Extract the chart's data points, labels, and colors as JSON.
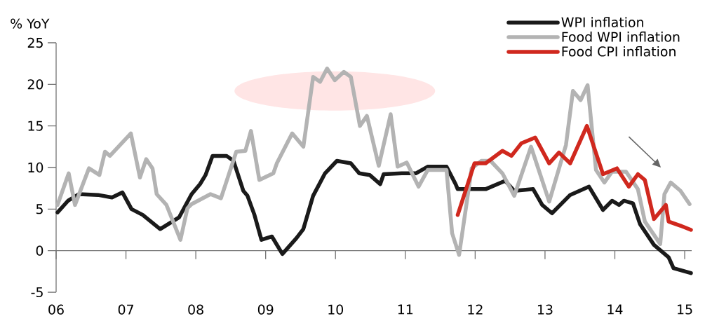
{
  "chart_data": {
    "type": "line",
    "ylabel": "% YoY",
    "xlim": [
      2006,
      2015.1
    ],
    "xticks": [
      {
        "value": 2006,
        "label": "06"
      },
      {
        "value": 2007,
        "label": "07"
      },
      {
        "value": 2008,
        "label": "08"
      },
      {
        "value": 2009,
        "label": "09"
      },
      {
        "value": 2010,
        "label": "10"
      },
      {
        "value": 2011,
        "label": "11"
      },
      {
        "value": 2012,
        "label": "12"
      },
      {
        "value": 2013,
        "label": "13"
      },
      {
        "value": 2014,
        "label": "14"
      },
      {
        "value": 2015,
        "label": "15"
      }
    ],
    "ylim": [
      -5,
      25
    ],
    "yticks": [
      -5,
      0,
      5,
      10,
      15,
      20,
      25
    ],
    "legend": "top right",
    "ref_lines": [
      {
        "axis": "y",
        "value": 0
      }
    ],
    "marker": "none",
    "line_style": "solid",
    "series": [
      {
        "name": "WPI inflation",
        "color": "#1a1a1a",
        "x": [
          2006.02,
          2006.17,
          2006.33,
          2006.6,
          2006.8,
          2006.95,
          2007.08,
          2007.24,
          2007.49,
          2007.76,
          2007.94,
          2008.06,
          2008.14,
          2008.24,
          2008.44,
          2008.54,
          2008.68,
          2008.74,
          2008.84,
          2008.94,
          2009.09,
          2009.24,
          2009.44,
          2009.54,
          2009.68,
          2009.85,
          2010.02,
          2010.22,
          2010.34,
          2010.49,
          2010.64,
          2010.69,
          2010.95,
          2011.15,
          2011.32,
          2011.59,
          2011.72,
          2011.75,
          2012.15,
          2012.43,
          2012.56,
          2012.83,
          2012.96,
          2013.1,
          2013.36,
          2013.63,
          2013.73,
          2013.83,
          2013.96,
          2014.06,
          2014.13,
          2014.26,
          2014.36,
          2014.56,
          2014.77,
          2014.84,
          2015.09
        ],
        "values": [
          4.6,
          6.0,
          6.8,
          6.7,
          6.4,
          7.0,
          5.0,
          4.3,
          2.6,
          4.0,
          6.8,
          8.0,
          9.1,
          11.4,
          11.4,
          10.8,
          7.2,
          6.6,
          4.3,
          1.3,
          1.7,
          -0.4,
          1.5,
          2.6,
          6.6,
          9.3,
          10.8,
          10.5,
          9.3,
          9.1,
          8.0,
          9.2,
          9.3,
          9.3,
          10.1,
          10.1,
          8.0,
          7.4,
          7.4,
          8.4,
          7.2,
          7.4,
          5.5,
          4.5,
          6.7,
          7.7,
          6.3,
          4.9,
          6.0,
          5.5,
          6.0,
          5.7,
          3.2,
          0.7,
          -0.8,
          -2.1,
          -2.7
        ]
      },
      {
        "name": "Food WPI inflation",
        "color": "#b3b3b3",
        "x": [
          2006.02,
          2006.18,
          2006.27,
          2006.47,
          2006.62,
          2006.7,
          2006.77,
          2007.07,
          2007.2,
          2007.29,
          2007.38,
          2007.44,
          2007.58,
          2007.78,
          2007.88,
          2007.94,
          2008.21,
          2008.36,
          2008.58,
          2008.71,
          2008.79,
          2008.91,
          2009.11,
          2009.16,
          2009.38,
          2009.54,
          2009.68,
          2009.78,
          2009.88,
          2009.99,
          2010.12,
          2010.22,
          2010.35,
          2010.45,
          2010.62,
          2010.79,
          2010.89,
          2011.02,
          2011.19,
          2011.32,
          2011.59,
          2011.67,
          2011.77,
          2011.95,
          2012.09,
          2012.22,
          2012.39,
          2012.56,
          2012.8,
          2013.06,
          2013.3,
          2013.4,
          2013.51,
          2013.61,
          2013.73,
          2013.85,
          2013.96,
          2014.16,
          2014.33,
          2014.43,
          2014.65,
          2014.71,
          2014.8,
          2014.94,
          2015.07
        ],
        "values": [
          5.5,
          9.3,
          5.5,
          9.9,
          9.1,
          11.9,
          11.4,
          14.1,
          8.8,
          11.0,
          9.9,
          6.8,
          5.5,
          1.3,
          5.1,
          5.6,
          6.8,
          6.3,
          11.9,
          12.0,
          14.4,
          8.5,
          9.3,
          10.5,
          14.1,
          12.5,
          20.9,
          20.3,
          21.9,
          20.5,
          21.5,
          20.9,
          15.0,
          16.2,
          10.2,
          16.4,
          10.1,
          10.6,
          7.7,
          9.7,
          9.7,
          2.1,
          -0.5,
          9.9,
          10.8,
          10.8,
          9.3,
          6.6,
          12.5,
          5.9,
          12.7,
          19.2,
          18.1,
          19.9,
          9.7,
          8.2,
          9.5,
          9.5,
          7.4,
          3.5,
          0.8,
          6.8,
          8.2,
          7.2,
          5.6
        ]
      },
      {
        "name": "Food CPI inflation",
        "color": "#d0281e",
        "x": [
          2011.75,
          2011.99,
          2012.15,
          2012.39,
          2012.52,
          2012.66,
          2012.86,
          2013.06,
          2013.2,
          2013.36,
          2013.6,
          2013.83,
          2014.03,
          2014.2,
          2014.33,
          2014.43,
          2014.56,
          2014.73,
          2014.77,
          2014.94,
          2015.09
        ],
        "values": [
          4.3,
          10.5,
          10.5,
          12.0,
          11.4,
          12.9,
          13.6,
          10.5,
          11.8,
          10.5,
          15.0,
          9.2,
          9.9,
          7.7,
          9.2,
          8.5,
          3.8,
          5.5,
          3.5,
          3.0,
          2.5
        ]
      }
    ]
  }
}
